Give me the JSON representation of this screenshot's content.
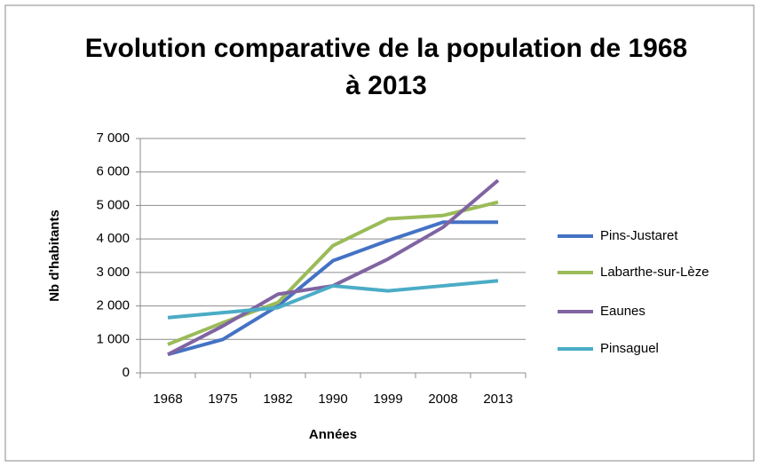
{
  "chart_data": {
    "type": "line",
    "title": "Evolution comparative de la population de 1968 à 2013",
    "x_label": "Années",
    "y_label": "Nb d'habitants",
    "categories": [
      "1968",
      "1975",
      "1982",
      "1990",
      "1999",
      "2008",
      "2013"
    ],
    "series": [
      {
        "name": "Pins-Justaret",
        "color": "#4472c4",
        "values": [
          550,
          1000,
          2000,
          3350,
          3950,
          4500,
          4500
        ]
      },
      {
        "name": "Labarthe-sur-Lèze",
        "color": "#9bbb59",
        "values": [
          850,
          1500,
          2100,
          3800,
          4600,
          4700,
          5100
        ]
      },
      {
        "name": "Eaunes",
        "color": "#8064a2",
        "values": [
          550,
          1400,
          2350,
          2600,
          3400,
          4350,
          5750
        ]
      },
      {
        "name": "Pinsaguel",
        "color": "#4bacc6",
        "values": [
          1650,
          1800,
          1950,
          2600,
          2450,
          2600,
          2750
        ]
      }
    ],
    "ylim": [
      0,
      7000
    ],
    "yticks": [
      0,
      {
        "value": 1000,
        "label": "1 000"
      },
      {
        "value": 2000,
        "label": "2 000"
      },
      {
        "value": 3000,
        "label": "3 000"
      },
      {
        "value": 4000,
        "label": "4 000"
      },
      {
        "value": 5000,
        "label": "5 000"
      },
      {
        "value": 6000,
        "label": "6 000"
      },
      {
        "value": 7000,
        "label": "7 000"
      }
    ],
    "grid": true,
    "legend": "right"
  }
}
